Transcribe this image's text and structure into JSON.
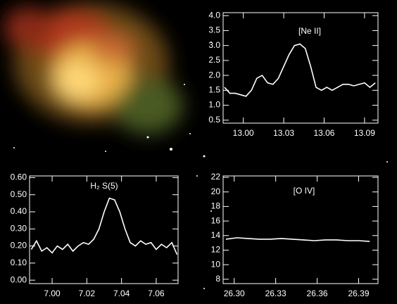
{
  "chart_data": [
    {
      "type": "line",
      "title": "[Ne II]",
      "color": "#ffffff",
      "x": [
        12.986,
        12.99,
        12.994,
        12.998,
        13.002,
        13.006,
        13.01,
        13.014,
        13.018,
        13.022,
        13.026,
        13.03,
        13.034,
        13.038,
        13.042,
        13.046,
        13.05,
        13.054,
        13.058,
        13.062,
        13.066,
        13.07,
        13.074,
        13.078,
        13.082,
        13.086,
        13.09,
        13.094,
        13.098
      ],
      "values": [
        1.6,
        1.4,
        1.4,
        1.35,
        1.3,
        1.5,
        1.9,
        2.0,
        1.75,
        1.7,
        1.9,
        2.3,
        2.7,
        3.0,
        3.05,
        2.9,
        2.3,
        1.6,
        1.5,
        1.6,
        1.5,
        1.6,
        1.7,
        1.7,
        1.65,
        1.7,
        1.75,
        1.6,
        1.75
      ],
      "xlim": [
        12.985,
        13.1
      ],
      "xticks": [
        {
          "value": 13.0,
          "label": "13.00"
        },
        13.03,
        13.06,
        13.09
      ],
      "ylim": [
        0.4,
        4.1
      ],
      "yticks": [
        0.5,
        {
          "value": 1.0,
          "label": "1.0"
        },
        1.5,
        {
          "value": 2.0,
          "label": "2.0"
        },
        2.5,
        {
          "value": 3.0,
          "label": "3.0"
        },
        3.5,
        {
          "value": 4.0,
          "label": "4.0"
        }
      ]
    },
    {
      "type": "line",
      "title": "H₂ S(5)",
      "color": "#ffffff",
      "x": [
        6.988,
        6.991,
        6.994,
        6.997,
        7.0,
        7.003,
        7.006,
        7.009,
        7.012,
        7.015,
        7.018,
        7.021,
        7.024,
        7.027,
        7.03,
        7.033,
        7.036,
        7.039,
        7.042,
        7.045,
        7.048,
        7.051,
        7.054,
        7.057,
        7.06,
        7.063,
        7.066,
        7.069,
        7.072
      ],
      "values": [
        0.18,
        0.23,
        0.17,
        0.19,
        0.16,
        0.2,
        0.18,
        0.21,
        0.17,
        0.2,
        0.22,
        0.21,
        0.24,
        0.3,
        0.4,
        0.48,
        0.47,
        0.4,
        0.3,
        0.22,
        0.2,
        0.23,
        0.21,
        0.22,
        0.18,
        0.21,
        0.19,
        0.22,
        0.15
      ],
      "xlim": [
        6.987,
        7.0726
      ],
      "xticks": [
        {
          "value": 7.0,
          "label": "7.00"
        },
        7.02,
        7.04,
        7.06
      ],
      "ylim": [
        -0.02,
        0.61
      ],
      "yticks": [
        {
          "value": 0,
          "label": "0.00"
        },
        {
          "value": 0.1,
          "label": "0.10"
        },
        {
          "value": 0.2,
          "label": "0.20"
        },
        {
          "value": 0.3,
          "label": "0.30"
        },
        {
          "value": 0.4,
          "label": "0.40"
        },
        {
          "value": 0.5,
          "label": "0.50"
        },
        {
          "value": 0.6,
          "label": "0.60"
        }
      ]
    },
    {
      "type": "line",
      "title": "[O IV]",
      "color": "#ffffff",
      "x": [
        26.294,
        26.302,
        26.31,
        26.318,
        26.326,
        26.334,
        26.342,
        26.35,
        26.358,
        26.366,
        26.374,
        26.382,
        26.39,
        26.398
      ],
      "values": [
        13.5,
        13.7,
        13.6,
        13.5,
        13.5,
        13.6,
        13.5,
        13.4,
        13.3,
        13.4,
        13.4,
        13.3,
        13.3,
        13.2
      ],
      "xlim": [
        26.292,
        26.404
      ],
      "xticks": [
        {
          "value": 26.3,
          "label": "26.30"
        },
        26.33,
        26.36,
        26.39
      ],
      "ylim": [
        7.4,
        22.2
      ],
      "yticks": [
        8,
        10,
        12,
        14,
        16,
        18,
        20,
        22
      ]
    }
  ]
}
